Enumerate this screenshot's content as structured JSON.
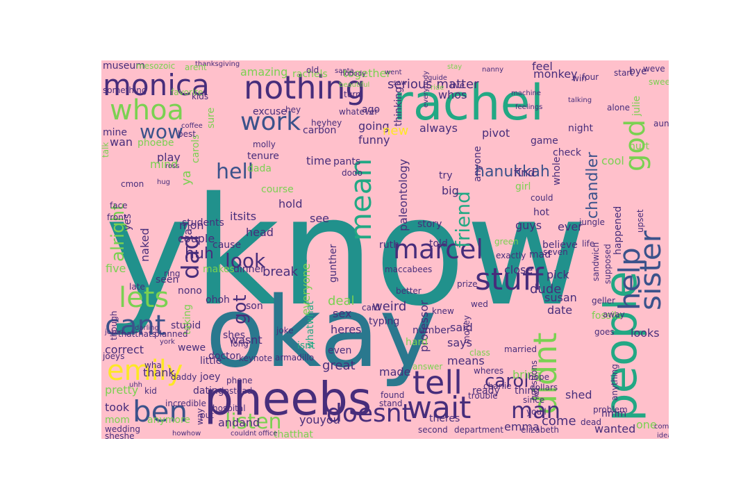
{
  "cloud": {
    "background": "#ffc0cb",
    "palette": {
      "teal": "#21918c",
      "teal2": "#2a788e",
      "green": "#22a884",
      "lime": "#7ad151",
      "yellow": "#fde725",
      "blue": "#31688e",
      "navy": "#3b528b",
      "purple": "#472d7b",
      "darkpurple": "#440154"
    },
    "words": [
      {
        "text": "yknow",
        "color": "teal"
      },
      {
        "text": "okay",
        "color": "teal2"
      },
      {
        "text": "rachel",
        "color": "green"
      },
      {
        "text": "pheebs",
        "color": "purple"
      },
      {
        "text": "people",
        "color": "green"
      },
      {
        "text": "monica",
        "color": "purple"
      },
      {
        "text": "nothing",
        "color": "purple"
      },
      {
        "text": "whoa",
        "color": "lime"
      },
      {
        "text": "work",
        "color": "navy"
      },
      {
        "text": "god",
        "color": "lime"
      },
      {
        "text": "wow",
        "color": "navy"
      },
      {
        "text": "ben",
        "color": "navy"
      },
      {
        "text": "cant",
        "color": "navy"
      },
      {
        "text": "emily",
        "color": "yellow"
      },
      {
        "text": "lets",
        "color": "lime"
      },
      {
        "text": "alright",
        "color": "lime"
      },
      {
        "text": "dad",
        "color": "purple"
      },
      {
        "text": "hell",
        "color": "navy"
      },
      {
        "text": "mean",
        "color": "green"
      },
      {
        "text": "marcel",
        "color": "purple"
      },
      {
        "text": "stuff",
        "color": "purple"
      },
      {
        "text": "sister",
        "color": "navy"
      },
      {
        "text": "help",
        "color": "navy"
      },
      {
        "text": "didnt",
        "color": "lime"
      },
      {
        "text": "tell",
        "color": "purple"
      },
      {
        "text": "wait",
        "color": "purple"
      },
      {
        "text": "doesnt",
        "color": "purple"
      },
      {
        "text": "listen",
        "color": "lime"
      },
      {
        "text": "man",
        "color": "purple"
      },
      {
        "text": "hanukkah",
        "color": "navy"
      },
      {
        "text": "chandler",
        "color": "navy"
      },
      {
        "text": "friend",
        "color": "green"
      },
      {
        "text": "look",
        "color": "purple"
      },
      {
        "text": "ii",
        "color": "teal"
      },
      {
        "text": "got",
        "color": "purple"
      },
      {
        "text": "huh",
        "color": "purple"
      },
      {
        "text": "carol",
        "color": "purple"
      },
      {
        "text": "amazing",
        "color": "lime"
      },
      {
        "text": "serious matter",
        "color": "purple"
      },
      {
        "text": "monkey",
        "color": "purple"
      },
      {
        "text": "always",
        "color": "purple"
      },
      {
        "text": "pivot",
        "color": "purple"
      },
      {
        "text": "going",
        "color": "purple"
      },
      {
        "text": "together",
        "color": "lime"
      },
      {
        "text": "feel",
        "color": "purple"
      },
      {
        "text": "funny",
        "color": "purple"
      },
      {
        "text": "new",
        "color": "yellow"
      },
      {
        "text": "paleontology",
        "color": "purple"
      },
      {
        "text": "course",
        "color": "lime"
      },
      {
        "text": "hold",
        "color": "purple"
      },
      {
        "text": "mon",
        "color": "purple"
      },
      {
        "text": "couple",
        "color": "purple"
      },
      {
        "text": "play",
        "color": "purple"
      },
      {
        "text": "phoebe",
        "color": "lime"
      },
      {
        "text": "mind",
        "color": "lime"
      },
      {
        "text": "five",
        "color": "lime"
      },
      {
        "text": "seen",
        "color": "purple"
      },
      {
        "text": "naked",
        "color": "purple"
      },
      {
        "text": "correct",
        "color": "purple"
      },
      {
        "text": "thank",
        "color": "purple"
      },
      {
        "text": "pretty",
        "color": "lime"
      },
      {
        "text": "took",
        "color": "purple"
      },
      {
        "text": "mom",
        "color": "lime"
      },
      {
        "text": "anymore",
        "color": "lime"
      },
      {
        "text": "wedding",
        "color": "purple"
      },
      {
        "text": "sheshe",
        "color": "purple"
      },
      {
        "text": "andand",
        "color": "purple"
      },
      {
        "text": "youyou",
        "color": "purple"
      },
      {
        "text": "thatthat",
        "color": "lime"
      },
      {
        "text": "great",
        "color": "purple"
      },
      {
        "text": "made",
        "color": "purple"
      },
      {
        "text": "isnt",
        "color": "green"
      },
      {
        "text": "even",
        "color": "purple"
      },
      {
        "text": "wewe",
        "color": "purple"
      },
      {
        "text": "little",
        "color": "purple"
      },
      {
        "text": "joey",
        "color": "purple"
      },
      {
        "text": "wasnt",
        "color": "purple"
      },
      {
        "text": "stupid",
        "color": "purple"
      },
      {
        "text": "taking",
        "color": "lime"
      },
      {
        "text": "nono",
        "color": "purple"
      },
      {
        "text": "ohoh",
        "color": "purple"
      },
      {
        "text": "break",
        "color": "purple"
      },
      {
        "text": "makes",
        "color": "lime"
      },
      {
        "text": "dinner",
        "color": "purple"
      },
      {
        "text": "cause",
        "color": "purple"
      },
      {
        "text": "head",
        "color": "purple"
      },
      {
        "text": "students",
        "color": "purple"
      },
      {
        "text": "itsits",
        "color": "purple"
      },
      {
        "text": "yes",
        "color": "purple"
      },
      {
        "text": "ta",
        "color": "purple"
      },
      {
        "text": "ya",
        "color": "lime"
      },
      {
        "text": "sure",
        "color": "lime"
      },
      {
        "text": "excuse",
        "color": "purple"
      },
      {
        "text": "ago",
        "color": "purple"
      },
      {
        "text": "whos",
        "color": "purple"
      },
      {
        "text": "thinking",
        "color": "purple"
      },
      {
        "text": "time",
        "color": "purple"
      },
      {
        "text": "see",
        "color": "purple"
      },
      {
        "text": "gunther",
        "color": "purple"
      },
      {
        "text": "story",
        "color": "purple"
      },
      {
        "text": "told",
        "color": "purple"
      },
      {
        "text": "deal",
        "color": "lime"
      },
      {
        "text": "weird",
        "color": "purple"
      },
      {
        "text": "heres",
        "color": "purple"
      },
      {
        "text": "sex",
        "color": "purple"
      },
      {
        "text": "whatwhat",
        "color": "green"
      },
      {
        "text": "everyone",
        "color": "lime"
      },
      {
        "text": "professor",
        "color": "purple"
      },
      {
        "text": "said",
        "color": "purple"
      },
      {
        "text": "says",
        "color": "purple"
      },
      {
        "text": "means",
        "color": "purple"
      },
      {
        "text": "number",
        "color": "purple"
      },
      {
        "text": "hard",
        "color": "lime"
      },
      {
        "text": "dude",
        "color": "purple"
      },
      {
        "text": "susan",
        "color": "purple"
      },
      {
        "text": "date",
        "color": "purple"
      },
      {
        "text": "looks",
        "color": "purple"
      },
      {
        "text": "pick",
        "color": "purple"
      },
      {
        "text": "close",
        "color": "purple"
      },
      {
        "text": "believe",
        "color": "purple"
      },
      {
        "text": "ever",
        "color": "purple"
      },
      {
        "text": "guys",
        "color": "purple"
      },
      {
        "text": "girl",
        "color": "lime"
      },
      {
        "text": "find",
        "color": "purple"
      },
      {
        "text": "whole",
        "color": "purple"
      },
      {
        "text": "happened",
        "color": "purple"
      },
      {
        "text": "cool",
        "color": "lime"
      },
      {
        "text": "hurt",
        "color": "lime"
      },
      {
        "text": "check",
        "color": "purple"
      },
      {
        "text": "game",
        "color": "purple"
      },
      {
        "text": "night",
        "color": "purple"
      },
      {
        "text": "anyone",
        "color": "purple"
      },
      {
        "text": "try",
        "color": "purple"
      },
      {
        "text": "big",
        "color": "purple"
      },
      {
        "text": "come",
        "color": "purple"
      },
      {
        "text": "emma",
        "color": "purple"
      },
      {
        "text": "bring",
        "color": "lime"
      },
      {
        "text": "theres",
        "color": "purple"
      },
      {
        "text": "ready",
        "color": "purple"
      },
      {
        "text": "wanted",
        "color": "purple"
      },
      {
        "text": "one",
        "color": "lime"
      },
      {
        "text": "hmm",
        "color": "purple"
      },
      {
        "text": "elizabeth",
        "color": "purple"
      },
      {
        "text": "bye",
        "color": "purple"
      },
      {
        "text": "julie",
        "color": "lime"
      },
      {
        "text": "museum",
        "color": "purple"
      },
      {
        "text": "mesozoic",
        "color": "lime"
      },
      {
        "text": "thanksgiving",
        "color": "purple"
      },
      {
        "text": "rachels",
        "color": "lime"
      },
      {
        "text": "kids",
        "color": "purple"
      },
      {
        "text": "wan",
        "color": "purple"
      },
      {
        "text": "mine",
        "color": "purple"
      },
      {
        "text": "something",
        "color": "purple"
      },
      {
        "text": "cmon",
        "color": "purple"
      },
      {
        "text": "talk",
        "color": "lime"
      },
      {
        "text": "carols",
        "color": "lime"
      },
      {
        "text": "dada",
        "color": "lime"
      },
      {
        "text": "tenure",
        "color": "purple"
      },
      {
        "text": "molly",
        "color": "purple"
      },
      {
        "text": "carbon",
        "color": "purple"
      },
      {
        "text": "pants",
        "color": "purple"
      },
      {
        "text": "dodo",
        "color": "purple"
      },
      {
        "text": "ruth",
        "color": "purple"
      },
      {
        "text": "maccabees",
        "color": "purple"
      },
      {
        "text": "doctor",
        "color": "purple"
      },
      {
        "text": "son",
        "color": "purple"
      },
      {
        "text": "typing",
        "color": "purple"
      },
      {
        "text": "dating",
        "color": "purple"
      },
      {
        "text": "shes",
        "color": "purple"
      },
      {
        "text": "long",
        "color": "purple"
      },
      {
        "text": "joke",
        "color": "purple"
      },
      {
        "text": "armadillo",
        "color": "purple"
      },
      {
        "text": "keynote",
        "color": "purple"
      },
      {
        "text": "way",
        "color": "purple"
      },
      {
        "text": "incredible",
        "color": "purple"
      },
      {
        "text": "put",
        "color": "purple"
      },
      {
        "text": "money",
        "color": "purple"
      },
      {
        "text": "married",
        "color": "purple"
      },
      {
        "text": "thing",
        "color": "purple"
      },
      {
        "text": "since",
        "color": "purple"
      },
      {
        "text": "charlie",
        "color": "purple"
      },
      {
        "text": "youll",
        "color": "purple"
      },
      {
        "text": "questions",
        "color": "purple"
      },
      {
        "text": "problem",
        "color": "purple"
      },
      {
        "text": "anything",
        "color": "purple"
      },
      {
        "text": "shed",
        "color": "purple"
      },
      {
        "text": "dead",
        "color": "purple"
      },
      {
        "text": "sandwich",
        "color": "purple"
      },
      {
        "text": "fossils",
        "color": "lime"
      },
      {
        "text": "goes",
        "color": "purple"
      },
      {
        "text": "away",
        "color": "purple"
      },
      {
        "text": "geller",
        "color": "purple"
      },
      {
        "text": "supposed",
        "color": "purple"
      },
      {
        "text": "upset",
        "color": "purple"
      },
      {
        "text": "mad",
        "color": "purple"
      },
      {
        "text": "seven",
        "color": "purple"
      },
      {
        "text": "life",
        "color": "purple"
      },
      {
        "text": "hot",
        "color": "purple"
      },
      {
        "text": "could",
        "color": "purple"
      },
      {
        "text": "jungle",
        "color": "purple"
      },
      {
        "text": "exactly",
        "color": "purple"
      },
      {
        "text": "green",
        "color": "lime"
      },
      {
        "text": "prize",
        "color": "purple"
      },
      {
        "text": "card",
        "color": "purple"
      },
      {
        "text": "better",
        "color": "purple"
      },
      {
        "text": "face",
        "color": "purple"
      },
      {
        "text": "front",
        "color": "purple"
      },
      {
        "text": "ring",
        "color": "purple"
      },
      {
        "text": "late",
        "color": "purple"
      },
      {
        "text": "though",
        "color": "purple"
      },
      {
        "text": "joeys",
        "color": "purple"
      },
      {
        "text": "wha",
        "color": "purple"
      },
      {
        "text": "kid",
        "color": "purple"
      },
      {
        "text": "darling",
        "color": "purple"
      },
      {
        "text": "uhh",
        "color": "purple"
      },
      {
        "text": "hey",
        "color": "purple"
      },
      {
        "text": "heyhey",
        "color": "purple"
      },
      {
        "text": "whatever",
        "color": "purple"
      },
      {
        "text": "turn",
        "color": "purple"
      },
      {
        "text": "old",
        "color": "purple"
      },
      {
        "text": "santa",
        "color": "purple"
      },
      {
        "text": "nobody",
        "color": "purple"
      },
      {
        "text": "went",
        "color": "purple"
      },
      {
        "text": "saw",
        "color": "purple"
      },
      {
        "text": "beautiful",
        "color": "lime"
      },
      {
        "text": "favorite",
        "color": "lime"
      },
      {
        "text": "arent",
        "color": "lime"
      },
      {
        "text": "coffee",
        "color": "purple"
      },
      {
        "text": "best",
        "color": "purple"
      },
      {
        "text": "live",
        "color": "purple"
      },
      {
        "text": "ride",
        "color": "lime"
      },
      {
        "text": "everybody",
        "color": "purple"
      },
      {
        "text": "machine",
        "color": "purple"
      },
      {
        "text": "feelings",
        "color": "purple"
      },
      {
        "text": "alone",
        "color": "purple"
      },
      {
        "text": "talking",
        "color": "purple"
      },
      {
        "text": "win",
        "color": "purple"
      },
      {
        "text": "four",
        "color": "purple"
      },
      {
        "text": "start",
        "color": "purple"
      },
      {
        "text": "weve",
        "color": "purple"
      },
      {
        "text": "sweetie",
        "color": "lime"
      },
      {
        "text": "aunt",
        "color": "purple"
      },
      {
        "text": "nanny",
        "color": "purple"
      },
      {
        "text": "stay",
        "color": "lime"
      },
      {
        "text": "guide",
        "color": "purple"
      },
      {
        "text": "wed",
        "color": "purple"
      },
      {
        "text": "knew",
        "color": "purple"
      },
      {
        "text": "answer",
        "color": "lime"
      },
      {
        "text": "found",
        "color": "purple"
      },
      {
        "text": "stand",
        "color": "purple"
      },
      {
        "text": "trouble",
        "color": "purple"
      },
      {
        "text": "wheres",
        "color": "purple"
      },
      {
        "text": "hope",
        "color": "purple"
      },
      {
        "text": "class",
        "color": "lime"
      },
      {
        "text": "dollars",
        "color": "purple"
      },
      {
        "text": "second",
        "color": "purple"
      },
      {
        "text": "department",
        "color": "purple"
      },
      {
        "text": "comes",
        "color": "purple"
      },
      {
        "text": "idea",
        "color": "purple"
      },
      {
        "text": "office",
        "color": "purple"
      },
      {
        "text": "couldnt",
        "color": "purple"
      },
      {
        "text": "howhow",
        "color": "purple"
      },
      {
        "text": "hospital",
        "color": "purple"
      },
      {
        "text": "instead",
        "color": "purple"
      },
      {
        "text": "phone",
        "color": "purple"
      },
      {
        "text": "daddy",
        "color": "purple"
      },
      {
        "text": "jokes",
        "color": "purple"
      },
      {
        "text": "thatthats",
        "color": "purple"
      },
      {
        "text": "planned",
        "color": "purple"
      },
      {
        "text": "york",
        "color": "purple"
      },
      {
        "text": "hug",
        "color": "purple"
      },
      {
        "text": "ross",
        "color": "purple"
      }
    ]
  }
}
